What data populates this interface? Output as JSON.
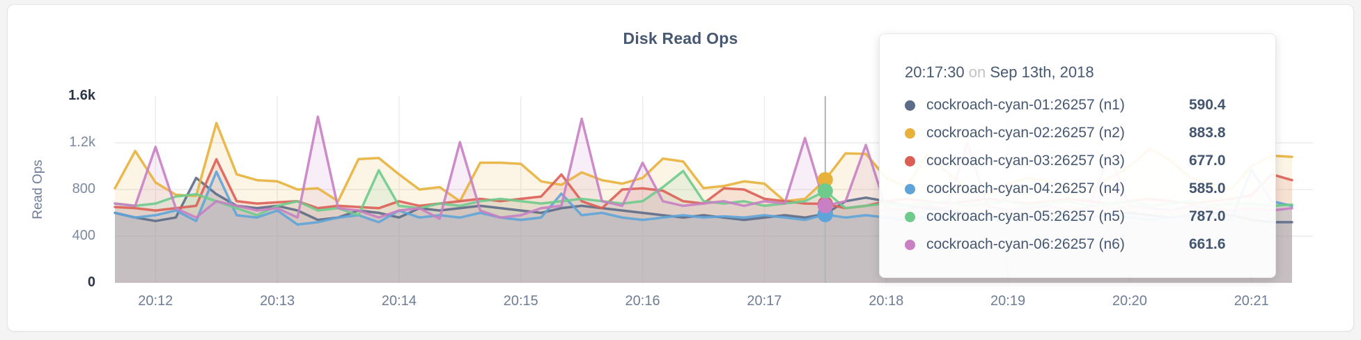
{
  "page": {
    "background": "#f4f4f4",
    "card_background": "#ffffff"
  },
  "chart": {
    "title": "Disk Read Ops",
    "y_axis_title": "Read Ops"
  },
  "tooltip": {
    "time": "20:17:30",
    "connector": "on",
    "date": "Sep 13th, 2018",
    "rows": [
      {
        "label": "cockroach-cyan-01:26257 (n1)",
        "value": "590.4",
        "color": "#5c6b87"
      },
      {
        "label": "cockroach-cyan-02:26257 (n2)",
        "value": "883.8",
        "color": "#e8b13b"
      },
      {
        "label": "cockroach-cyan-03:26257 (n3)",
        "value": "677.0",
        "color": "#dc5f56"
      },
      {
        "label": "cockroach-cyan-04:26257 (n4)",
        "value": "585.0",
        "color": "#5ea4d8"
      },
      {
        "label": "cockroach-cyan-05:26257 (n5)",
        "value": "787.0",
        "color": "#6ecb8c"
      },
      {
        "label": "cockroach-cyan-06:26257 (n6)",
        "value": "661.6",
        "color": "#c87fc3"
      }
    ]
  },
  "chart_data": {
    "type": "line",
    "title": "Disk Read Ops",
    "ylabel": "Read Ops",
    "ylim": [
      0,
      1600
    ],
    "grid": true,
    "x_start": "20:11:40",
    "x_step_seconds": 10,
    "x_ticks": [
      "20:12",
      "20:13",
      "20:14",
      "20:15",
      "20:16",
      "20:17",
      "20:18",
      "20:19",
      "20:20",
      "20:21"
    ],
    "x_tick_start_index": 2,
    "x_tick_step": 6,
    "y_ticks": [
      {
        "label": "1.6k",
        "value": 1600,
        "emphasis": true
      },
      {
        "label": "1.2k",
        "value": 1200,
        "emphasis": false
      },
      {
        "label": "800",
        "value": 800,
        "emphasis": false
      },
      {
        "label": "400",
        "value": 400,
        "emphasis": false
      },
      {
        "label": "0",
        "value": 0,
        "emphasis": true
      }
    ],
    "crosshair": {
      "index": 35,
      "time": "20:17:30",
      "date": "Sep 13th, 2018"
    },
    "series": [
      {
        "name": "cockroach-cyan-01:26257 (n1)",
        "color": "#5c6b87",
        "values": [
          600,
          560,
          530,
          560,
          900,
          760,
          660,
          640,
          660,
          620,
          540,
          560,
          620,
          600,
          560,
          640,
          620,
          640,
          660,
          640,
          620,
          600,
          640,
          660,
          640,
          620,
          600,
          580,
          560,
          580,
          560,
          540,
          560,
          580,
          560,
          590.4,
          700,
          730,
          700,
          660,
          640,
          620,
          600,
          580,
          560,
          580,
          600,
          580,
          560,
          580,
          600,
          580,
          560,
          580,
          600,
          580,
          540,
          520,
          520
        ]
      },
      {
        "name": "cockroach-cyan-02:26257 (n2)",
        "color": "#e8b13b",
        "values": [
          810,
          1130,
          860,
          755,
          745,
          1370,
          930,
          880,
          870,
          800,
          810,
          700,
          1060,
          1070,
          930,
          800,
          820,
          700,
          1030,
          1030,
          1020,
          870,
          840,
          947,
          880,
          850,
          900,
          1065,
          1040,
          812,
          830,
          870,
          850,
          700,
          720,
          883.8,
          1110,
          1105,
          900,
          820,
          1100,
          950,
          800,
          760,
          850,
          900,
          870,
          820,
          780,
          900,
          1000,
          1150,
          1050,
          900,
          850,
          800,
          1000,
          1090,
          1080
        ]
      },
      {
        "name": "cockroach-cyan-03:26257 (n3)",
        "color": "#dc5f56",
        "values": [
          650,
          640,
          620,
          640,
          660,
          1059,
          700,
          680,
          690,
          700,
          640,
          660,
          650,
          640,
          700,
          660,
          680,
          700,
          720,
          700,
          720,
          740,
          929,
          700,
          640,
          800,
          810,
          790,
          700,
          680,
          810,
          800,
          720,
          700,
          680,
          677,
          640,
          660,
          700,
          720,
          700,
          680,
          700,
          720,
          700,
          680,
          700,
          720,
          700,
          680,
          700,
          720,
          700,
          680,
          700,
          720,
          750,
          930,
          880
        ]
      },
      {
        "name": "cockroach-cyan-04:26257 (n4)",
        "color": "#5ea4d8",
        "values": [
          600,
          560,
          580,
          620,
          530,
          953,
          580,
          560,
          620,
          500,
          520,
          560,
          580,
          520,
          620,
          560,
          580,
          560,
          600,
          560,
          540,
          560,
          765,
          580,
          600,
          560,
          540,
          560,
          580,
          560,
          570,
          560,
          580,
          560,
          540,
          585,
          560,
          580,
          560,
          540,
          560,
          580,
          560,
          540,
          560,
          580,
          560,
          540,
          560,
          580,
          560,
          540,
          560,
          580,
          560,
          540,
          970,
          700,
          660
        ]
      },
      {
        "name": "cockroach-cyan-05:26257 (n5)",
        "color": "#6ecb8c",
        "values": [
          680,
          660,
          680,
          740,
          760,
          700,
          640,
          580,
          660,
          700,
          620,
          640,
          580,
          965,
          660,
          640,
          680,
          660,
          700,
          720,
          700,
          680,
          700,
          720,
          700,
          680,
          700,
          820,
          959,
          700,
          680,
          700,
          660,
          680,
          700,
          787,
          640,
          660,
          680,
          660,
          680,
          700,
          660,
          680,
          700,
          660,
          680,
          700,
          660,
          680,
          700,
          660,
          680,
          700,
          660,
          680,
          680,
          660,
          670
        ]
      },
      {
        "name": "cockroach-cyan-06:26257 (n6)",
        "color": "#c87fc3",
        "values": [
          680,
          660,
          1165,
          640,
          560,
          700,
          660,
          620,
          640,
          560,
          1424,
          640,
          620,
          560,
          620,
          640,
          550,
          1206,
          620,
          560,
          580,
          640,
          660,
          1406,
          700,
          660,
          1029,
          700,
          660,
          680,
          700,
          660,
          700,
          680,
          1241,
          661.6,
          700,
          1182,
          640,
          620,
          660,
          640,
          1200,
          660,
          620,
          640,
          660,
          620,
          640,
          1100,
          660,
          640,
          620,
          660,
          640,
          620,
          640,
          620,
          640
        ]
      }
    ],
    "colors": {
      "grid": "#ececec",
      "crosshair": "#b0b4b8",
      "title_text": "#475872",
      "tick_text": "#6e7d95"
    }
  }
}
